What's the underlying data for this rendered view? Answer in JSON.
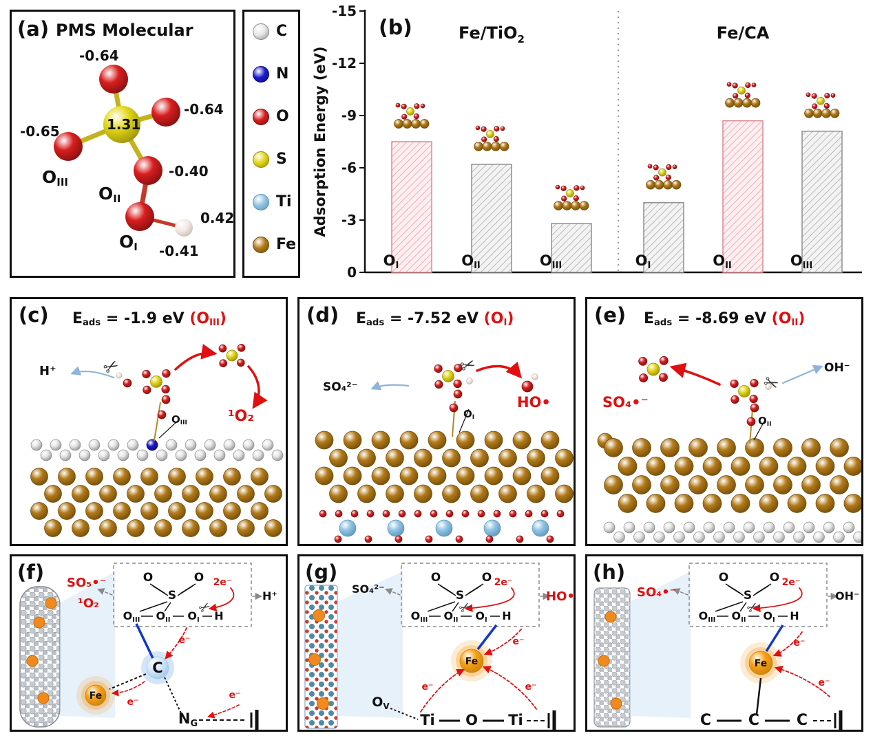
{
  "colors": {
    "C": "#dcdcdc",
    "N": "#1b1bd0",
    "O": "#d81e1e",
    "S": "#e3d718",
    "Ti": "#92c4e4",
    "Fe": "#b27a18",
    "accent_red": "#e01010",
    "blue_bond": "#1238c8",
    "fe_orange": "#f59816",
    "bar_pink_edge": "#d98a92",
    "bar_gray_edge": "#8f8f8f"
  },
  "icons": {
    "scissors": "✂"
  },
  "panel_a": {
    "tag": "(a)",
    "title": "PMS Molecular",
    "charge_o_top": "-0.64",
    "charge_o_right": "-0.64",
    "charge_o_left": "-0.65",
    "charge_s": "1.31",
    "charge_o2": "-0.40",
    "charge_h": "0.42",
    "charge_o1": "-0.41",
    "site3_base": "O",
    "site3_sub": "III",
    "site2_base": "O",
    "site2_sub": "II",
    "site1_base": "O",
    "site1_sub": "I"
  },
  "legend": {
    "items": [
      {
        "label": "C",
        "color": "#e6e6e6",
        "edge": "#8d8d8d"
      },
      {
        "label": "N",
        "color": "#1b1bd0",
        "edge": "#0b0b70"
      },
      {
        "label": "O",
        "color": "#d81e1e",
        "edge": "#7d0f0f"
      },
      {
        "label": "S",
        "color": "#e3d718",
        "edge": "#958c08"
      },
      {
        "label": "Ti",
        "color": "#92c4e4",
        "edge": "#5b93b8"
      },
      {
        "label": "Fe",
        "color": "#b27a18",
        "edge": "#6e4a0c"
      }
    ]
  },
  "panel_b": {
    "tag": "(b)",
    "group1": {
      "base": "Fe/TiO",
      "sub": "2"
    },
    "group2": {
      "base": "Fe/CA",
      "sub": ""
    },
    "ylabel": "Adsorption Energy (eV)"
  },
  "chart_data": {
    "type": "bar",
    "ylabel": "Adsorption Energy (eV)",
    "ylim": [
      0,
      -15
    ],
    "yticks": [
      0,
      -3,
      -6,
      -9,
      -12,
      -15
    ],
    "grid": false,
    "groups": [
      {
        "name": "Fe/TiO2",
        "categories": [
          "O_I",
          "O_II",
          "O_III"
        ],
        "values": [
          -7.5,
          -6.2,
          -2.8
        ],
        "highlighted": [
          true,
          false,
          false
        ]
      },
      {
        "name": "Fe/CA",
        "categories": [
          "O_I",
          "O_II",
          "O_III"
        ],
        "values": [
          -4.0,
          -8.7,
          -8.1
        ],
        "highlighted": [
          false,
          true,
          false
        ]
      }
    ],
    "bar_labels": [
      {
        "base": "O",
        "sub": "I"
      },
      {
        "base": "O",
        "sub": "II"
      },
      {
        "base": "O",
        "sub": "III"
      }
    ]
  },
  "panel_c": {
    "tag": "(c)",
    "eads_base": "E",
    "eads_sub": "ads",
    "eads_eq": " = -1.9 eV ",
    "site_open": "(O",
    "site_sub": "III",
    "site_close": ")",
    "label_h": "H⁺",
    "label_singlet_o2": "¹O₂",
    "surf_base": "O",
    "surf_sub": "III"
  },
  "panel_d": {
    "tag": "(d)",
    "eads_base": "E",
    "eads_sub": "ads",
    "eads_eq": " = -7.52 eV ",
    "site_open": "(O",
    "site_sub": "I",
    "site_close": ")",
    "label_so4": "SO₄²⁻",
    "label_ho": "HO•",
    "surf_base": "O",
    "surf_sub": "I"
  },
  "panel_e": {
    "tag": "(e)",
    "eads_base": "E",
    "eads_sub": "ads",
    "eads_eq": " = -8.69 eV ",
    "site_open": "(O",
    "site_sub": "II",
    "site_close": ")",
    "label_so4rad": "SO₄•⁻",
    "label_oh": "OH⁻",
    "surf_base": "O",
    "surf_sub": "II"
  },
  "panel_f": {
    "tag": "(f)",
    "label_so5": "SO₅•⁻",
    "label_singlet_o2": "¹O₂",
    "label_h": "H⁺",
    "label_2e": "2e⁻",
    "label_e": "e⁻",
    "center_atom": "C",
    "fe": "Fe",
    "ng_base": "N",
    "ng_sub": "G",
    "box": {
      "o_left": "O",
      "o_right": "O",
      "s": "S",
      "o3b": "O",
      "o3s": "III",
      "o2b": "O",
      "o2s": "II",
      "o1b": "O",
      "o1s": "I",
      "h": "H"
    }
  },
  "panel_g": {
    "tag": "(g)",
    "label_so4": "SO₄²⁻",
    "label_ho": "HO•",
    "label_2e": "2e⁻",
    "label_e": "e⁻",
    "fe": "Fe",
    "ov_base": "O",
    "ov_sub": "V",
    "chain": [
      "Ti",
      "O",
      "Ti"
    ],
    "box": {
      "o_left": "O",
      "o_right": "O",
      "s": "S",
      "o3b": "O",
      "o3s": "III",
      "o2b": "O",
      "o2s": "II",
      "o1b": "O",
      "o1s": "I",
      "h": "H"
    }
  },
  "panel_h": {
    "tag": "(h)",
    "label_so4rad": "SO₄•⁻",
    "label_oh": "OH⁻",
    "label_2e": "2e⁻",
    "label_e": "e⁻",
    "fe": "Fe",
    "chain": [
      "C",
      "C",
      "C"
    ],
    "box": {
      "o_left": "O",
      "o_right": "O",
      "s": "S",
      "o3b": "O",
      "o3s": "III",
      "o2b": "O",
      "o2s": "II",
      "o1b": "O",
      "o1s": "I",
      "h": "H"
    }
  }
}
